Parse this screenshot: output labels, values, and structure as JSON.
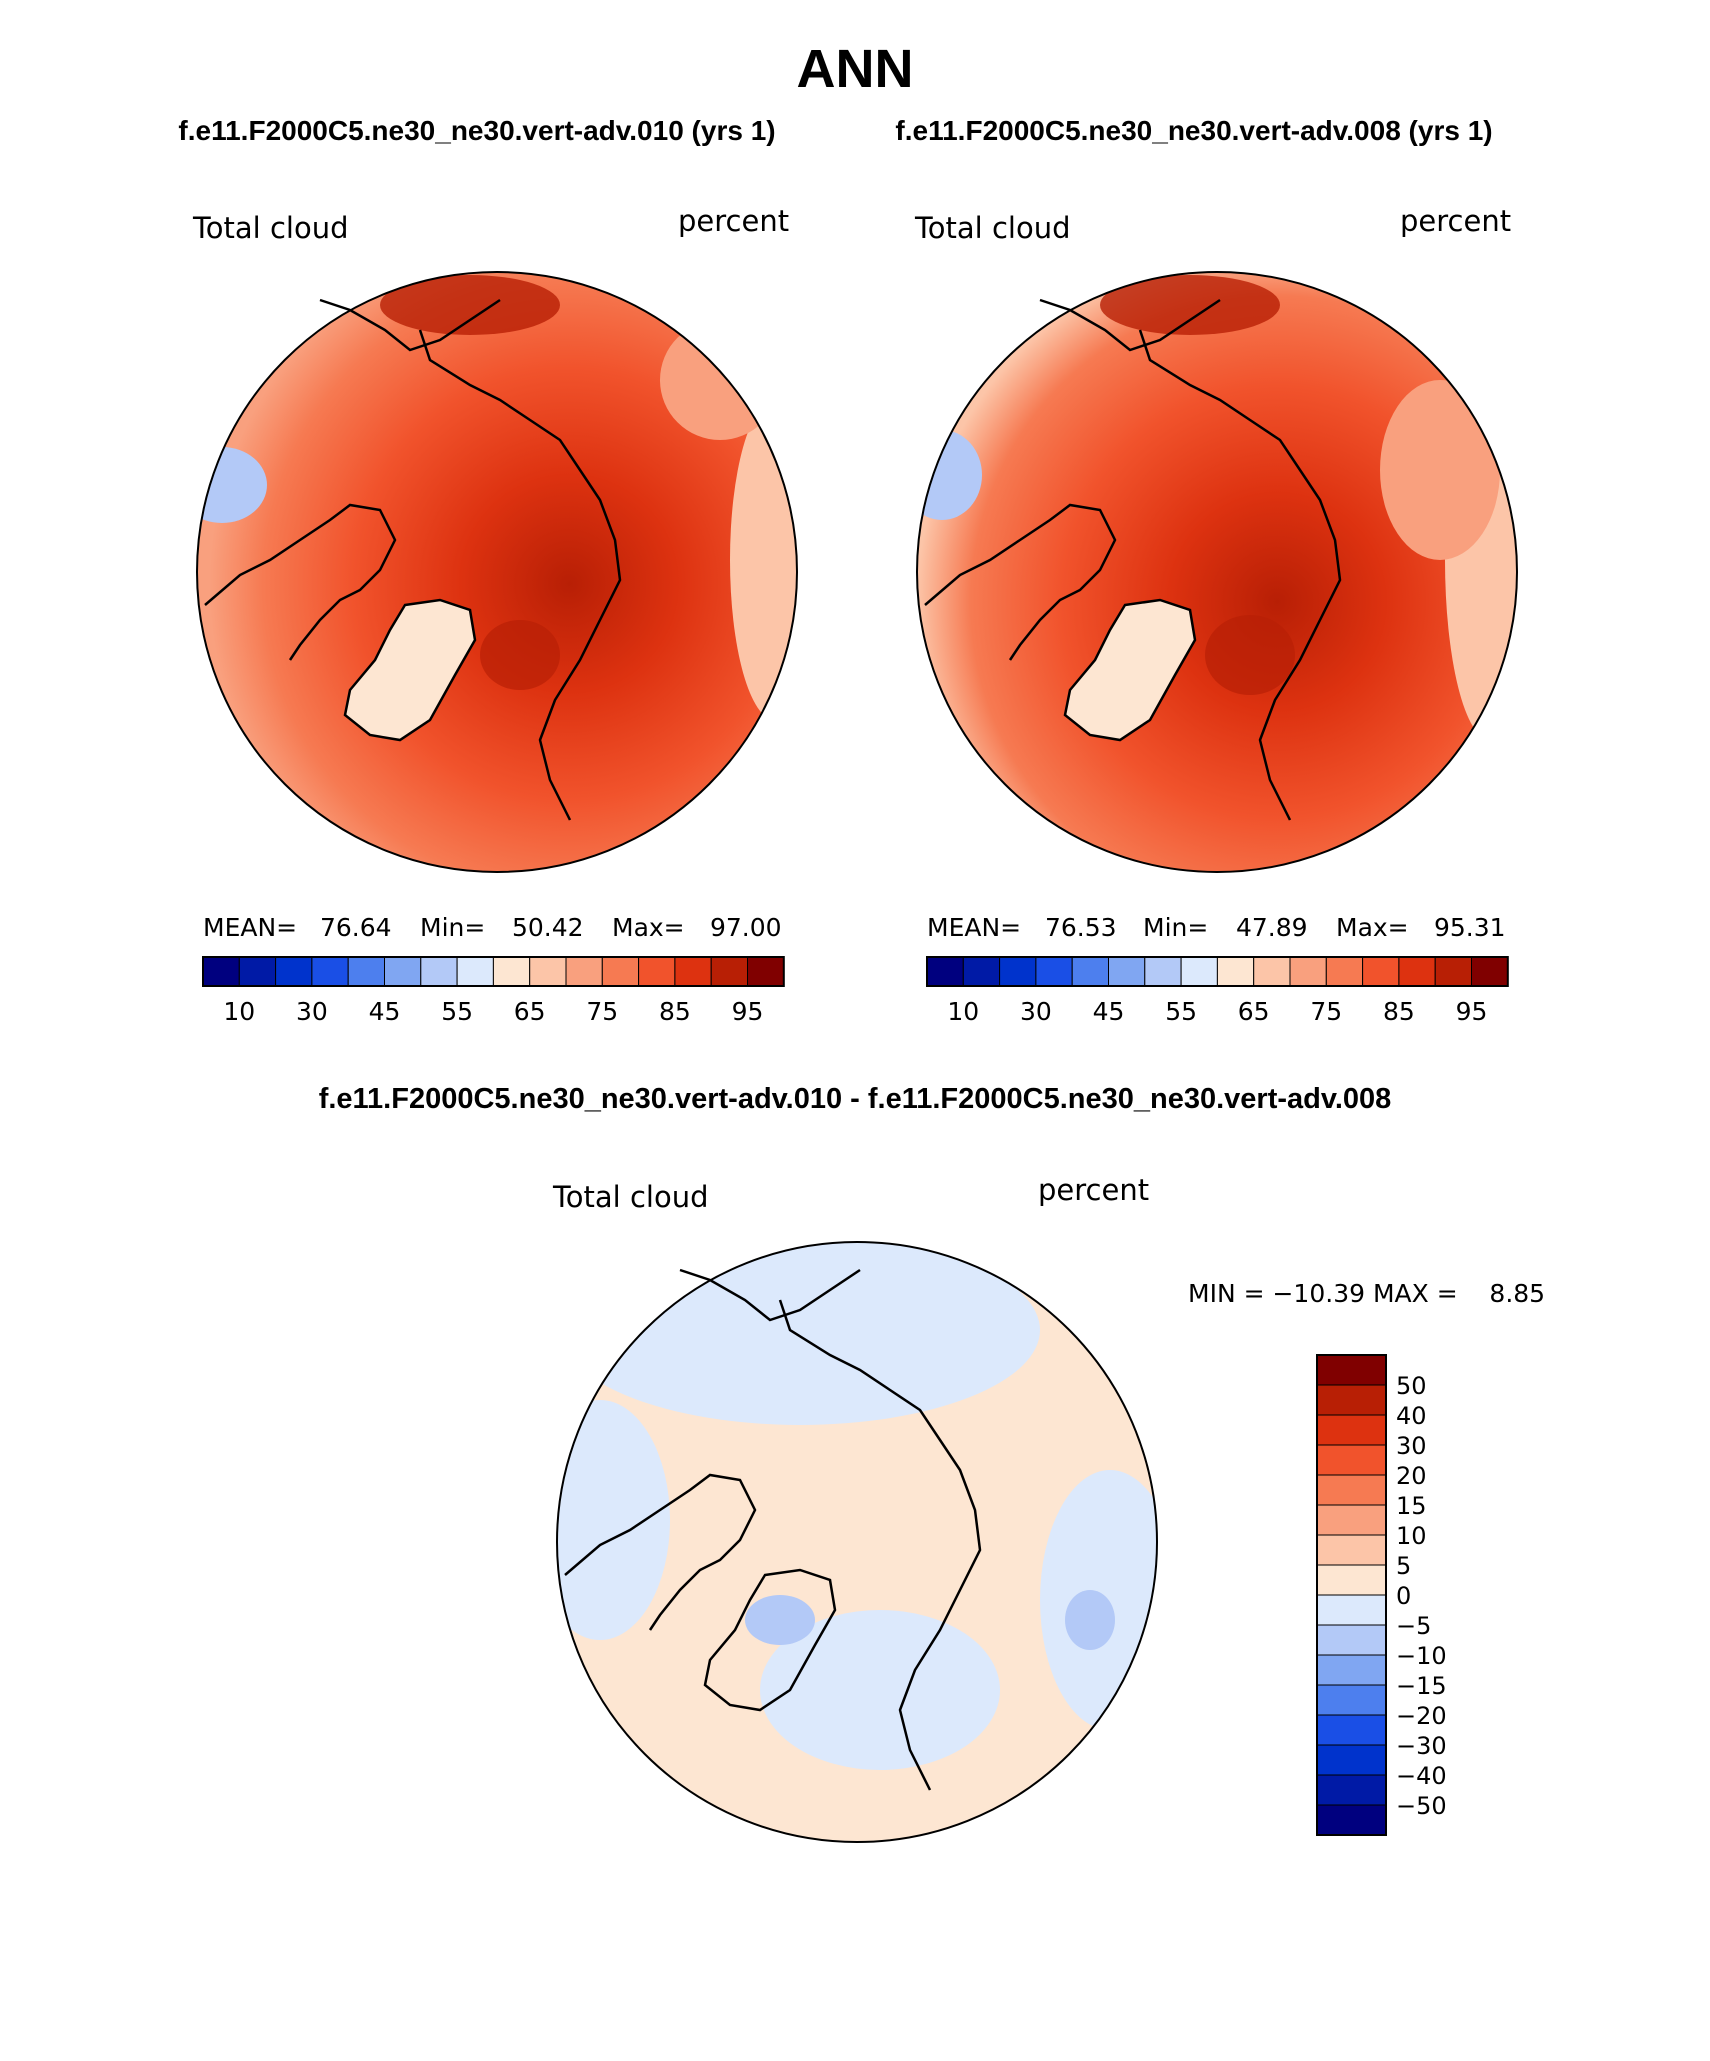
{
  "figure": {
    "title": "ANN",
    "subtitle_left": "f.e11.F2000C5.ne30_ne30.vert-adv.010 (yrs 1)",
    "subtitle_right": "f.e11.F2000C5.ne30_ne30.vert-adv.008 (yrs 1)",
    "diff_title": "f.e11.F2000C5.ne30_ne30.vert-adv.010 - f.e11.F2000C5.ne30_ne30.vert-adv.008"
  },
  "panels": [
    {
      "id": "case-010",
      "label_left": "Total cloud",
      "label_right": "percent",
      "stats": {
        "mean_label": "MEAN=",
        "mean": "76.64",
        "min_label": "Min=",
        "min": "50.42",
        "max_label": "Max=",
        "max": "97.00"
      }
    },
    {
      "id": "case-008",
      "label_left": "Total cloud",
      "label_right": "percent",
      "stats": {
        "mean_label": "MEAN=",
        "mean": "76.53",
        "min_label": "Min=",
        "min": "47.89",
        "max_label": "Max=",
        "max": "95.31"
      }
    }
  ],
  "diff_panel": {
    "label_left": "Total cloud",
    "label_right": "percent",
    "minmax_text": "MIN = −10.39 MAX =    8.85"
  },
  "abs_colorbar": {
    "colors": [
      "#00007f",
      "#001aa6",
      "#0033cc",
      "#1a4fe6",
      "#4d7fee",
      "#80a6f2",
      "#b3c9f7",
      "#dce9fc",
      "#fde6d2",
      "#fcc5a8",
      "#f9a07e",
      "#f67a52",
      "#f1532c",
      "#dd3210",
      "#b81f05",
      "#800000"
    ],
    "tick_labels": [
      "10",
      "30",
      "45",
      "55",
      "65",
      "75",
      "85",
      "95"
    ]
  },
  "diff_colorbar": {
    "colors_top_to_bottom": [
      "#800000",
      "#b81f05",
      "#dd3210",
      "#f1532c",
      "#f67a52",
      "#f9a07e",
      "#fcc5a8",
      "#fde6d2",
      "#dce9fc",
      "#b3c9f7",
      "#80a6f2",
      "#4d7fee",
      "#1a4fe6",
      "#0033cc",
      "#001aa6",
      "#00007f"
    ],
    "tick_labels": [
      "50",
      "40",
      "30",
      "20",
      "15",
      "10",
      "5",
      "0",
      "−5",
      "−10",
      "−15",
      "−20",
      "−30",
      "−40",
      "−50"
    ]
  }
}
